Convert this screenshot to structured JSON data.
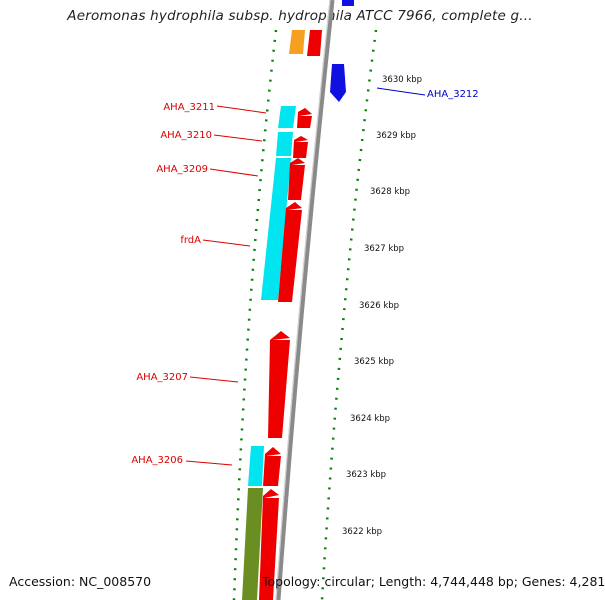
{
  "header": {
    "title": "Aeromonas hydrophila subsp. hydrophila ATCC 7966, complete g..."
  },
  "footer": {
    "accession": "Accession: NC_008570",
    "topology": "Topology: circular; Length: 4,744,448 bp; Genes: 4,281"
  },
  "colors": {
    "backbone": "#8a8a8a",
    "tick_green": "#0a7d0a",
    "cds_red": "#ee0000",
    "orf_cyan": "#00e5f0",
    "gene_orange": "#f5a020",
    "gene_olive": "#6b8e23",
    "reverse_blue": "#1010e0",
    "label_red": "#dd0000",
    "label_blue": "#0000cc"
  },
  "scale": {
    "tick_labels": [
      "3630 kbp",
      "3629 kbp",
      "3628 kbp",
      "3627 kbp",
      "3626 kbp",
      "3625 kbp",
      "3624 kbp",
      "3623 kbp",
      "3622 kbp"
    ]
  },
  "genes": [
    {
      "name": "AHA_3212",
      "strand": "reverse",
      "color": "blue"
    },
    {
      "name": "AHA_3211",
      "strand": "forward",
      "color": "red"
    },
    {
      "name": "AHA_3210",
      "strand": "forward",
      "color": "red"
    },
    {
      "name": "AHA_3209",
      "strand": "forward",
      "color": "red"
    },
    {
      "name": "frdA",
      "strand": "forward",
      "color": "red"
    },
    {
      "name": "AHA_3207",
      "strand": "forward",
      "color": "red"
    },
    {
      "name": "AHA_3206",
      "strand": "forward",
      "color": "red"
    }
  ]
}
